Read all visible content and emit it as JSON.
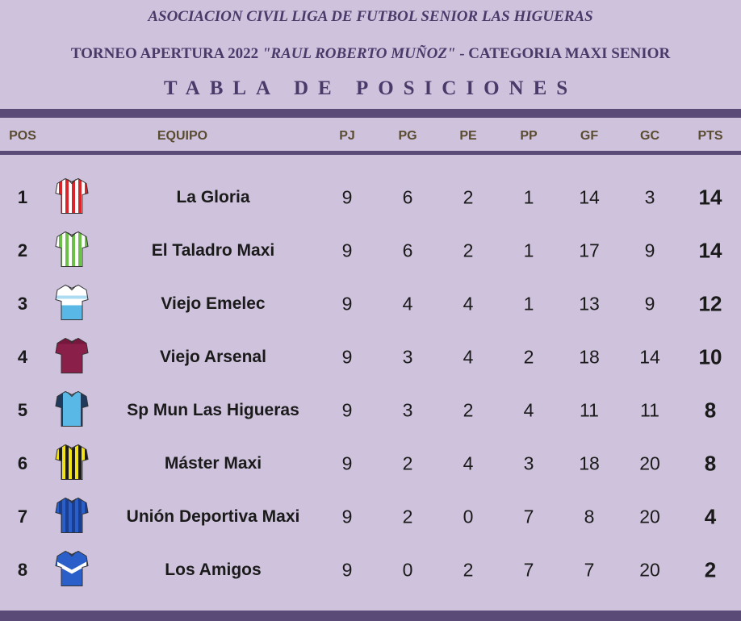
{
  "header": {
    "line1": "ASOCIACION CIVIL LIGA DE FUTBOL SENIOR LAS HIGUERAS",
    "line2_a": "TORNEO APERTURA 2022 ",
    "line2_b": "\"RAUL ROBERTO MUÑOZ\"",
    "line2_c": " - CATEGORIA MAXI SENIOR",
    "line3": "TABLA DE POSICIONES"
  },
  "columns": {
    "pos": "POS",
    "team": "EQUIPO",
    "pj": "PJ",
    "pg": "PG",
    "pe": "PE",
    "pp": "PP",
    "gf": "GF",
    "gc": "GC",
    "pts": "PTS"
  },
  "rows": [
    {
      "pos": "1",
      "team": "La Gloria",
      "pj": "9",
      "pg": "6",
      "pe": "2",
      "pp": "1",
      "gf": "14",
      "gc": "3",
      "pts": "14",
      "shirt": {
        "base": "#ffffff",
        "stripe": "#d8262b",
        "pattern": "vstripes"
      }
    },
    {
      "pos": "2",
      "team": "El Taladro Maxi",
      "pj": "9",
      "pg": "6",
      "pe": "2",
      "pp": "1",
      "gf": "17",
      "gc": "9",
      "pts": "14",
      "shirt": {
        "base": "#ffffff",
        "stripe": "#6cc04a",
        "pattern": "vstripes"
      }
    },
    {
      "pos": "3",
      "team": "Viejo Emelec",
      "pj": "9",
      "pg": "4",
      "pe": "4",
      "pp": "1",
      "gf": "13",
      "gc": "9",
      "pts": "12",
      "shirt": {
        "base": "#ffffff",
        "stripe": "#5ab8e6",
        "pattern": "bottom"
      }
    },
    {
      "pos": "4",
      "team": "Viejo Arsenal",
      "pj": "9",
      "pg": "3",
      "pe": "4",
      "pp": "2",
      "gf": "18",
      "gc": "14",
      "pts": "10",
      "shirt": {
        "base": "#8a1f4a",
        "stripe": "#6a1236",
        "pattern": "solid"
      }
    },
    {
      "pos": "5",
      "team": "Sp Mun Las Higueras",
      "pj": "9",
      "pg": "3",
      "pe": "2",
      "pp": "4",
      "gf": "11",
      "gc": "11",
      "pts": "8",
      "shirt": {
        "base": "#5ab8e6",
        "stripe": "#1f3a5a",
        "pattern": "sleeves"
      }
    },
    {
      "pos": "6",
      "team": "Máster Maxi",
      "pj": "9",
      "pg": "2",
      "pe": "4",
      "pp": "3",
      "gf": "18",
      "gc": "20",
      "pts": "8",
      "shirt": {
        "base": "#f2e21a",
        "stripe": "#1a1a1a",
        "pattern": "vstripes"
      }
    },
    {
      "pos": "7",
      "team": "Unión Deportiva Maxi",
      "pj": "9",
      "pg": "2",
      "pe": "0",
      "pp": "7",
      "gf": "8",
      "gc": "20",
      "pts": "4",
      "shirt": {
        "base": "#2a5ec8",
        "stripe": "#1a3f90",
        "pattern": "vstripes"
      }
    },
    {
      "pos": "8",
      "team": "Los Amigos",
      "pj": "9",
      "pg": "0",
      "pe": "2",
      "pp": "7",
      "gf": "7",
      "gc": "20",
      "pts": "2",
      "shirt": {
        "base": "#2a5ec8",
        "stripe": "#ffffff",
        "pattern": "chevron"
      }
    }
  ]
}
